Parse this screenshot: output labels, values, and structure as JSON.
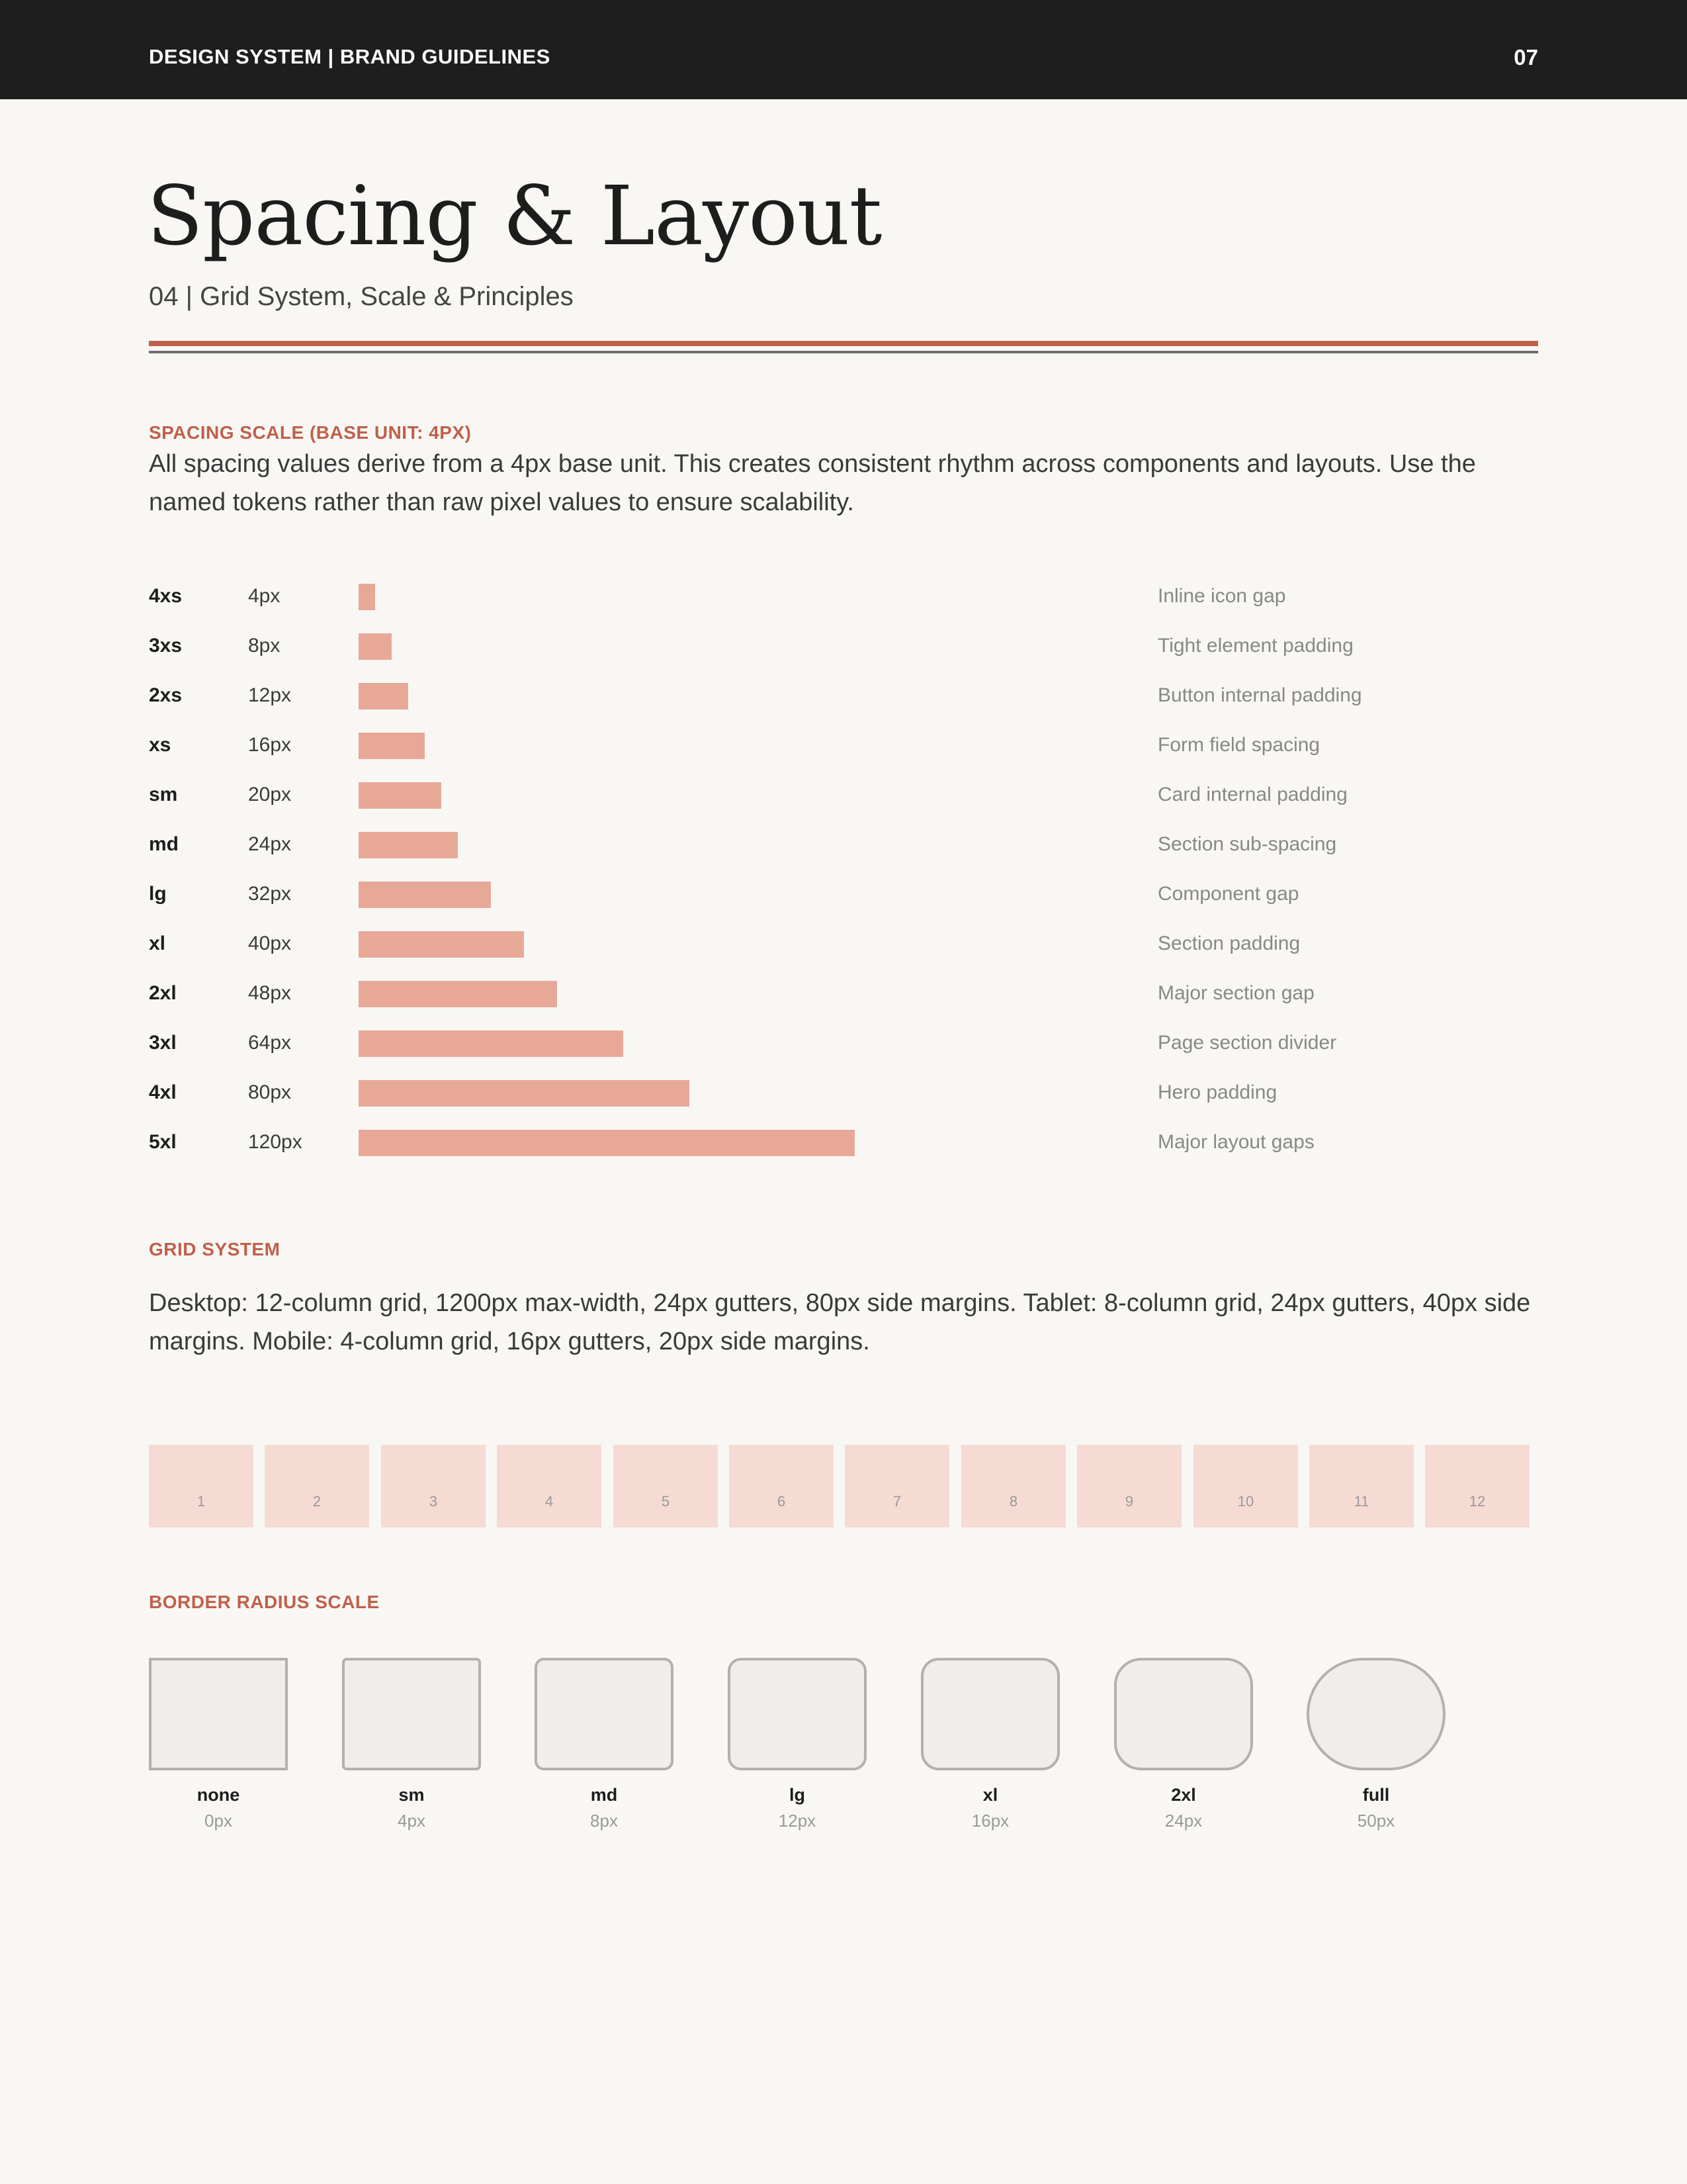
{
  "header": {
    "brand": "DESIGN SYSTEM  |  BRAND GUIDELINES",
    "page_number": "07"
  },
  "page": {
    "title": "Spacing & Layout",
    "subtitle": "04  |  Grid System, Scale & Principles"
  },
  "colors": {
    "accent": "#c0604a",
    "bar": "#e8a898",
    "grid_col": "#f6dbd3",
    "topbar": "#1e1e1e"
  },
  "spacing": {
    "label": "SPACING SCALE  (BASE UNIT: 4PX)",
    "description": "All spacing values derive from a 4px base unit. This creates consistent rhythm across components and layouts. Use the named tokens rather than raw pixel values to ensure scalability.",
    "tokens": [
      {
        "name": "4xs",
        "value_label": "4px",
        "value": 4,
        "usage": "Inline icon gap"
      },
      {
        "name": "3xs",
        "value_label": "8px",
        "value": 8,
        "usage": "Tight element padding"
      },
      {
        "name": "2xs",
        "value_label": "12px",
        "value": 12,
        "usage": "Button internal padding"
      },
      {
        "name": "xs",
        "value_label": "16px",
        "value": 16,
        "usage": "Form field spacing"
      },
      {
        "name": "sm",
        "value_label": "20px",
        "value": 20,
        "usage": "Card internal padding"
      },
      {
        "name": "md",
        "value_label": "24px",
        "value": 24,
        "usage": "Section sub-spacing"
      },
      {
        "name": "lg",
        "value_label": "32px",
        "value": 32,
        "usage": "Component gap"
      },
      {
        "name": "xl",
        "value_label": "40px",
        "value": 40,
        "usage": "Section padding"
      },
      {
        "name": "2xl",
        "value_label": "48px",
        "value": 48,
        "usage": "Major section gap"
      },
      {
        "name": "3xl",
        "value_label": "64px",
        "value": 64,
        "usage": "Page section divider"
      },
      {
        "name": "4xl",
        "value_label": "80px",
        "value": 80,
        "usage": "Hero padding"
      },
      {
        "name": "5xl",
        "value_label": "120px",
        "value": 120,
        "usage": "Major layout gaps"
      }
    ]
  },
  "grid": {
    "label": "GRID SYSTEM",
    "description": "Desktop: 12-column grid, 1200px max-width, 24px gutters, 80px side margins. Tablet: 8-column grid, 24px gutters, 40px side margins. Mobile: 4-column grid, 16px gutters, 20px side margins.",
    "columns": [
      "1",
      "2",
      "3",
      "4",
      "5",
      "6",
      "7",
      "8",
      "9",
      "10",
      "11",
      "12"
    ]
  },
  "radius": {
    "label": "BORDER RADIUS SCALE",
    "items": [
      {
        "name": "none",
        "value_label": "0px",
        "value": 0
      },
      {
        "name": "sm",
        "value_label": "4px",
        "value": 4
      },
      {
        "name": "md",
        "value_label": "8px",
        "value": 8
      },
      {
        "name": "lg",
        "value_label": "12px",
        "value": 12
      },
      {
        "name": "xl",
        "value_label": "16px",
        "value": 16
      },
      {
        "name": "2xl",
        "value_label": "24px",
        "value": 24
      },
      {
        "name": "full",
        "value_label": "50px",
        "value": 50
      }
    ]
  }
}
